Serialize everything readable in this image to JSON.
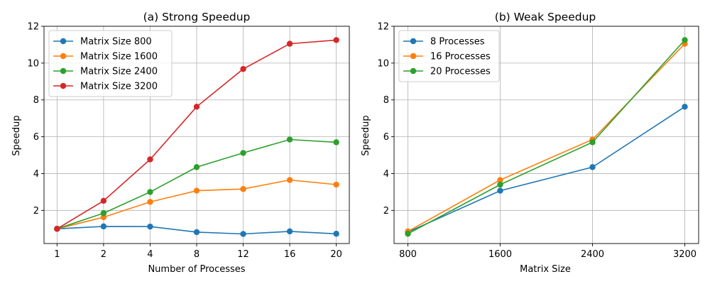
{
  "chart_data": [
    {
      "type": "line",
      "title": "(a) Strong Speedup",
      "xlabel": "Number of Processes",
      "ylabel": "Speedup",
      "categories": [
        "1",
        "2",
        "4",
        "8",
        "12",
        "16",
        "20"
      ],
      "ylim": [
        0.2,
        12
      ],
      "yticks": [
        "2",
        "4",
        "6",
        "8",
        "10",
        "12"
      ],
      "grid": true,
      "legend_position": "top-left",
      "series": [
        {
          "name": "Matrix Size 800",
          "color": "#1f77b4",
          "values": [
            1.0,
            1.13,
            1.12,
            0.82,
            0.72,
            0.86,
            0.73
          ]
        },
        {
          "name": "Matrix Size 1600",
          "color": "#ff7f0e",
          "values": [
            1.0,
            1.63,
            2.46,
            3.07,
            3.16,
            3.65,
            3.4
          ]
        },
        {
          "name": "Matrix Size 2400",
          "color": "#2ca02c",
          "values": [
            1.0,
            1.85,
            3.0,
            4.35,
            5.12,
            5.85,
            5.7
          ]
        },
        {
          "name": "Matrix Size 3200",
          "color": "#d62728",
          "values": [
            1.0,
            2.52,
            4.77,
            7.63,
            9.68,
            11.05,
            11.25
          ]
        }
      ]
    },
    {
      "type": "line",
      "title": "(b) Weak Speedup",
      "xlabel": "Matrix Size",
      "ylabel": "Speedup",
      "categories": [
        "800",
        "1600",
        "2400",
        "3200"
      ],
      "ylim": [
        0.2,
        12
      ],
      "yticks": [
        "2",
        "4",
        "6",
        "8",
        "10",
        "12"
      ],
      "grid": true,
      "legend_position": "top-left",
      "series": [
        {
          "name": "8 Processes",
          "color": "#1f77b4",
          "values": [
            0.82,
            3.07,
            4.35,
            7.63
          ]
        },
        {
          "name": "16 Processes",
          "color": "#ff7f0e",
          "values": [
            0.86,
            3.65,
            5.85,
            11.05
          ]
        },
        {
          "name": "20 Processes",
          "color": "#2ca02c",
          "values": [
            0.73,
            3.4,
            5.7,
            11.25
          ]
        }
      ]
    }
  ]
}
